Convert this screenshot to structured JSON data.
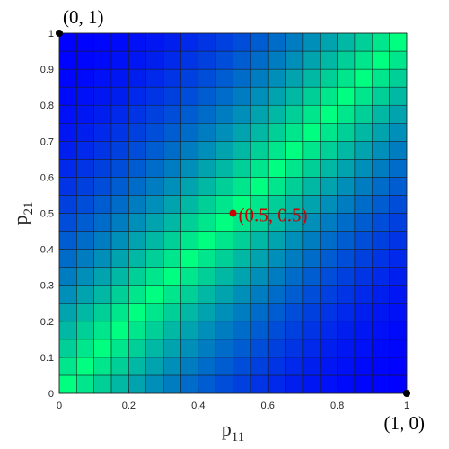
{
  "chart_data": {
    "type": "heatmap",
    "title": "",
    "xlabel": {
      "base": "p",
      "sub": "11"
    },
    "ylabel": {
      "base": "p",
      "sub": "21"
    },
    "xlim": [
      0,
      1
    ],
    "ylim": [
      0,
      1
    ],
    "grid_resolution": 20,
    "x_ticks": [
      "0",
      "0.2",
      "0.4",
      "0.6",
      "0.8",
      "1"
    ],
    "y_ticks": [
      "0",
      "0.1",
      "0.2",
      "0.3",
      "0.4",
      "0.5",
      "0.6",
      "0.7",
      "0.8",
      "0.9",
      "1"
    ],
    "colormap": {
      "low": "#0000ff",
      "high": "#00ff80"
    },
    "value_function": "intensity = (1 - |p11 - p21|)^2, high along the anti-diagonal trend p21 = p11",
    "points": [
      {
        "x": 0,
        "y": 1,
        "label": "(0, 1)",
        "color": "#000000"
      },
      {
        "x": 1,
        "y": 0,
        "label": "(1, 0)",
        "color": "#000000"
      },
      {
        "x": 0.5,
        "y": 0.5,
        "label": "(0.5, 0.5)",
        "color": "#cc0000"
      }
    ]
  }
}
